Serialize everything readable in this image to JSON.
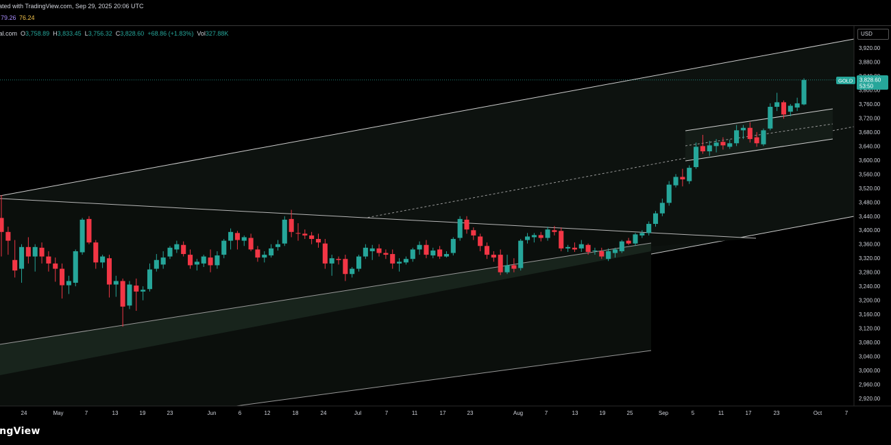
{
  "header": {
    "created_text": "ated with TradingView.com, Sep 29, 2025 20:06 UTC",
    "indicator_value_1": "79.26",
    "indicator_value_2": "76.24",
    "indicator_color_1": "#a78bfa",
    "indicator_color_2": "#f0c14b"
  },
  "ohlc": {
    "symbol_fragment": "ital.com",
    "o_label": "O",
    "o_value": "3,758.89",
    "h_label": "H",
    "h_value": "3,833.45",
    "l_label": "L",
    "l_value": "3,756.32",
    "c_label": "C",
    "c_value": "3,828.60",
    "change": "+68.86 (+1.83%)",
    "vol_label": "Vol",
    "vol_value": "327.88K"
  },
  "currency_button": "USD",
  "price_tag": {
    "symbol": "GOLD",
    "price": "3,828.60",
    "countdown": "53:50",
    "color": "#26a69a"
  },
  "footer_logo": "ingView",
  "colors": {
    "up": "#26a69a",
    "down": "#f23645",
    "background": "#000000",
    "line": "#cfcfcf"
  },
  "chart_data": {
    "type": "candlestick",
    "y_axis_labels": [
      "3,920.00",
      "3,880.00",
      "3,840.00",
      "3,800.00",
      "3,760.00",
      "3,720.00",
      "3,680.00",
      "3,640.00",
      "3,600.00",
      "3,560.00",
      "3,520.00",
      "3,480.00",
      "3,440.00",
      "3,400.00",
      "3,360.00",
      "3,320.00",
      "3,280.00",
      "3,240.00",
      "3,200.00",
      "3,160.00",
      "3,120.00",
      "3,080.00",
      "3,040.00",
      "3,000.00",
      "2,960.00",
      "2,920.00"
    ],
    "y_axis_values": [
      3920,
      3880,
      3840,
      3800,
      3760,
      3720,
      3680,
      3640,
      3600,
      3560,
      3520,
      3480,
      3440,
      3400,
      3360,
      3320,
      3280,
      3240,
      3200,
      3160,
      3120,
      3080,
      3040,
      3000,
      2960,
      2920
    ],
    "x_axis_labels": [
      "24",
      "May",
      "7",
      "13",
      "19",
      "23",
      "Jun",
      "6",
      "12",
      "18",
      "24",
      "Jul",
      "7",
      "11",
      "17",
      "23",
      "Aug",
      "7",
      "13",
      "19",
      "25",
      "Sep",
      "5",
      "11",
      "17",
      "23",
      "Oct",
      "7"
    ],
    "current_price": 3828.6,
    "candles": [
      {
        "o": 3435,
        "h": 3500,
        "l": 3325,
        "c": 3395
      },
      {
        "o": 3395,
        "h": 3410,
        "l": 3330,
        "c": 3370
      },
      {
        "o": 3315,
        "h": 3372,
        "l": 3265,
        "c": 3285
      },
      {
        "o": 3290,
        "h": 3360,
        "l": 3250,
        "c": 3352
      },
      {
        "o": 3352,
        "h": 3380,
        "l": 3305,
        "c": 3325
      },
      {
        "o": 3325,
        "h": 3360,
        "l": 3282,
        "c": 3352
      },
      {
        "o": 3350,
        "h": 3365,
        "l": 3305,
        "c": 3325
      },
      {
        "o": 3325,
        "h": 3340,
        "l": 3282,
        "c": 3305
      },
      {
        "o": 3305,
        "h": 3322,
        "l": 3253,
        "c": 3290
      },
      {
        "o": 3290,
        "h": 3305,
        "l": 3205,
        "c": 3243
      },
      {
        "o": 3243,
        "h": 3270,
        "l": 3218,
        "c": 3255
      },
      {
        "o": 3250,
        "h": 3345,
        "l": 3240,
        "c": 3340
      },
      {
        "o": 3337,
        "h": 3435,
        "l": 3330,
        "c": 3430
      },
      {
        "o": 3432,
        "h": 3440,
        "l": 3360,
        "c": 3365
      },
      {
        "o": 3365,
        "h": 3372,
        "l": 3290,
        "c": 3308
      },
      {
        "o": 3308,
        "h": 3330,
        "l": 3292,
        "c": 3325
      },
      {
        "o": 3320,
        "h": 3330,
        "l": 3208,
        "c": 3245
      },
      {
        "o": 3245,
        "h": 3270,
        "l": 3210,
        "c": 3255
      },
      {
        "o": 3255,
        "h": 3262,
        "l": 3125,
        "c": 3182
      },
      {
        "o": 3185,
        "h": 3255,
        "l": 3175,
        "c": 3245
      },
      {
        "o": 3242,
        "h": 3262,
        "l": 3170,
        "c": 3225
      },
      {
        "o": 3225,
        "h": 3240,
        "l": 3200,
        "c": 3230
      },
      {
        "o": 3232,
        "h": 3305,
        "l": 3225,
        "c": 3288
      },
      {
        "o": 3290,
        "h": 3332,
        "l": 3282,
        "c": 3315
      },
      {
        "o": 3302,
        "h": 3340,
        "l": 3290,
        "c": 3322
      },
      {
        "o": 3325,
        "h": 3355,
        "l": 3318,
        "c": 3350
      },
      {
        "o": 3345,
        "h": 3370,
        "l": 3335,
        "c": 3360
      },
      {
        "o": 3358,
        "h": 3368,
        "l": 3325,
        "c": 3332
      },
      {
        "o": 3330,
        "h": 3345,
        "l": 3290,
        "c": 3300
      },
      {
        "o": 3302,
        "h": 3318,
        "l": 3285,
        "c": 3310
      },
      {
        "o": 3305,
        "h": 3330,
        "l": 3295,
        "c": 3325
      },
      {
        "o": 3322,
        "h": 3345,
        "l": 3280,
        "c": 3300
      },
      {
        "o": 3300,
        "h": 3340,
        "l": 3290,
        "c": 3328
      },
      {
        "o": 3330,
        "h": 3375,
        "l": 3320,
        "c": 3370
      },
      {
        "o": 3370,
        "h": 3405,
        "l": 3345,
        "c": 3395
      },
      {
        "o": 3392,
        "h": 3398,
        "l": 3345,
        "c": 3372
      },
      {
        "o": 3370,
        "h": 3385,
        "l": 3355,
        "c": 3380
      },
      {
        "o": 3378,
        "h": 3390,
        "l": 3340,
        "c": 3345
      },
      {
        "o": 3345,
        "h": 3355,
        "l": 3310,
        "c": 3322
      },
      {
        "o": 3322,
        "h": 3340,
        "l": 3308,
        "c": 3330
      },
      {
        "o": 3328,
        "h": 3360,
        "l": 3322,
        "c": 3348
      },
      {
        "o": 3352,
        "h": 3372,
        "l": 3342,
        "c": 3360
      },
      {
        "o": 3362,
        "h": 3440,
        "l": 3355,
        "c": 3430
      },
      {
        "o": 3432,
        "h": 3458,
        "l": 3380,
        "c": 3395
      },
      {
        "o": 3392,
        "h": 3420,
        "l": 3370,
        "c": 3390
      },
      {
        "o": 3390,
        "h": 3402,
        "l": 3375,
        "c": 3385
      },
      {
        "o": 3385,
        "h": 3395,
        "l": 3360,
        "c": 3375
      },
      {
        "o": 3375,
        "h": 3390,
        "l": 3350,
        "c": 3365
      },
      {
        "o": 3362,
        "h": 3375,
        "l": 3290,
        "c": 3305
      },
      {
        "o": 3305,
        "h": 3330,
        "l": 3270,
        "c": 3320
      },
      {
        "o": 3318,
        "h": 3325,
        "l": 3302,
        "c": 3315
      },
      {
        "o": 3318,
        "h": 3330,
        "l": 3255,
        "c": 3275
      },
      {
        "o": 3275,
        "h": 3295,
        "l": 3265,
        "c": 3290
      },
      {
        "o": 3290,
        "h": 3330,
        "l": 3282,
        "c": 3325
      },
      {
        "o": 3325,
        "h": 3360,
        "l": 3318,
        "c": 3350
      },
      {
        "o": 3340,
        "h": 3358,
        "l": 3315,
        "c": 3348
      },
      {
        "o": 3348,
        "h": 3360,
        "l": 3325,
        "c": 3335
      },
      {
        "o": 3335,
        "h": 3345,
        "l": 3318,
        "c": 3330
      },
      {
        "o": 3332,
        "h": 3345,
        "l": 3290,
        "c": 3305
      },
      {
        "o": 3305,
        "h": 3320,
        "l": 3282,
        "c": 3310
      },
      {
        "o": 3308,
        "h": 3325,
        "l": 3302,
        "c": 3318
      },
      {
        "o": 3318,
        "h": 3350,
        "l": 3310,
        "c": 3345
      },
      {
        "o": 3345,
        "h": 3368,
        "l": 3330,
        "c": 3358
      },
      {
        "o": 3358,
        "h": 3372,
        "l": 3320,
        "c": 3330
      },
      {
        "o": 3328,
        "h": 3350,
        "l": 3320,
        "c": 3342
      },
      {
        "o": 3345,
        "h": 3355,
        "l": 3318,
        "c": 3325
      },
      {
        "o": 3325,
        "h": 3340,
        "l": 3322,
        "c": 3332
      },
      {
        "o": 3335,
        "h": 3380,
        "l": 3328,
        "c": 3375
      },
      {
        "o": 3378,
        "h": 3440,
        "l": 3370,
        "c": 3432
      },
      {
        "o": 3430,
        "h": 3440,
        "l": 3390,
        "c": 3402
      },
      {
        "o": 3400,
        "h": 3408,
        "l": 3372,
        "c": 3385
      },
      {
        "o": 3382,
        "h": 3390,
        "l": 3340,
        "c": 3355
      },
      {
        "o": 3355,
        "h": 3365,
        "l": 3318,
        "c": 3330
      },
      {
        "o": 3330,
        "h": 3340,
        "l": 3310,
        "c": 3322
      },
      {
        "o": 3330,
        "h": 3345,
        "l": 3272,
        "c": 3280
      },
      {
        "o": 3280,
        "h": 3330,
        "l": 3275,
        "c": 3300
      },
      {
        "o": 3300,
        "h": 3320,
        "l": 3280,
        "c": 3290
      },
      {
        "o": 3292,
        "h": 3375,
        "l": 3285,
        "c": 3370
      },
      {
        "o": 3372,
        "h": 3392,
        "l": 3362,
        "c": 3382
      },
      {
        "o": 3380,
        "h": 3392,
        "l": 3365,
        "c": 3386
      },
      {
        "o": 3386,
        "h": 3395,
        "l": 3368,
        "c": 3378
      },
      {
        "o": 3378,
        "h": 3410,
        "l": 3370,
        "c": 3402
      },
      {
        "o": 3400,
        "h": 3412,
        "l": 3385,
        "c": 3395
      },
      {
        "o": 3398,
        "h": 3408,
        "l": 3340,
        "c": 3348
      },
      {
        "o": 3348,
        "h": 3358,
        "l": 3338,
        "c": 3352
      },
      {
        "o": 3350,
        "h": 3365,
        "l": 3338,
        "c": 3345
      },
      {
        "o": 3348,
        "h": 3372,
        "l": 3338,
        "c": 3360
      },
      {
        "o": 3358,
        "h": 3362,
        "l": 3330,
        "c": 3338
      },
      {
        "o": 3340,
        "h": 3350,
        "l": 3330,
        "c": 3342
      },
      {
        "o": 3340,
        "h": 3350,
        "l": 3318,
        "c": 3325
      },
      {
        "o": 3318,
        "h": 3348,
        "l": 3312,
        "c": 3340
      },
      {
        "o": 3335,
        "h": 3350,
        "l": 3322,
        "c": 3345
      },
      {
        "o": 3340,
        "h": 3372,
        "l": 3335,
        "c": 3368
      },
      {
        "o": 3370,
        "h": 3378,
        "l": 3358,
        "c": 3362
      },
      {
        "o": 3362,
        "h": 3392,
        "l": 3355,
        "c": 3388
      },
      {
        "o": 3385,
        "h": 3400,
        "l": 3378,
        "c": 3392
      },
      {
        "o": 3392,
        "h": 3425,
        "l": 3385,
        "c": 3418
      },
      {
        "o": 3418,
        "h": 3455,
        "l": 3410,
        "c": 3448
      },
      {
        "o": 3448,
        "h": 3490,
        "l": 3440,
        "c": 3478
      },
      {
        "o": 3478,
        "h": 3540,
        "l": 3470,
        "c": 3530
      },
      {
        "o": 3528,
        "h": 3560,
        "l": 3522,
        "c": 3552
      },
      {
        "o": 3552,
        "h": 3575,
        "l": 3525,
        "c": 3545
      },
      {
        "o": 3540,
        "h": 3585,
        "l": 3532,
        "c": 3578
      },
      {
        "o": 3580,
        "h": 3650,
        "l": 3575,
        "c": 3638
      },
      {
        "o": 3640,
        "h": 3672,
        "l": 3618,
        "c": 3625
      },
      {
        "o": 3625,
        "h": 3655,
        "l": 3612,
        "c": 3642
      },
      {
        "o": 3640,
        "h": 3660,
        "l": 3622,
        "c": 3650
      },
      {
        "o": 3652,
        "h": 3665,
        "l": 3630,
        "c": 3642
      },
      {
        "o": 3638,
        "h": 3658,
        "l": 3632,
        "c": 3648
      },
      {
        "o": 3648,
        "h": 3700,
        "l": 3640,
        "c": 3685
      },
      {
        "o": 3685,
        "h": 3700,
        "l": 3660,
        "c": 3692
      },
      {
        "o": 3692,
        "h": 3708,
        "l": 3650,
        "c": 3660
      },
      {
        "o": 3665,
        "h": 3680,
        "l": 3638,
        "c": 3648
      },
      {
        "o": 3645,
        "h": 3690,
        "l": 3640,
        "c": 3685
      },
      {
        "o": 3690,
        "h": 3762,
        "l": 3685,
        "c": 3752
      },
      {
        "o": 3752,
        "h": 3792,
        "l": 3740,
        "c": 3765
      },
      {
        "o": 3765,
        "h": 3770,
        "l": 3718,
        "c": 3730
      },
      {
        "o": 3738,
        "h": 3760,
        "l": 3725,
        "c": 3755
      },
      {
        "o": 3750,
        "h": 3778,
        "l": 3740,
        "c": 3762
      },
      {
        "o": 3758.89,
        "h": 3833.45,
        "l": 3756.32,
        "c": 3828.6
      }
    ]
  }
}
